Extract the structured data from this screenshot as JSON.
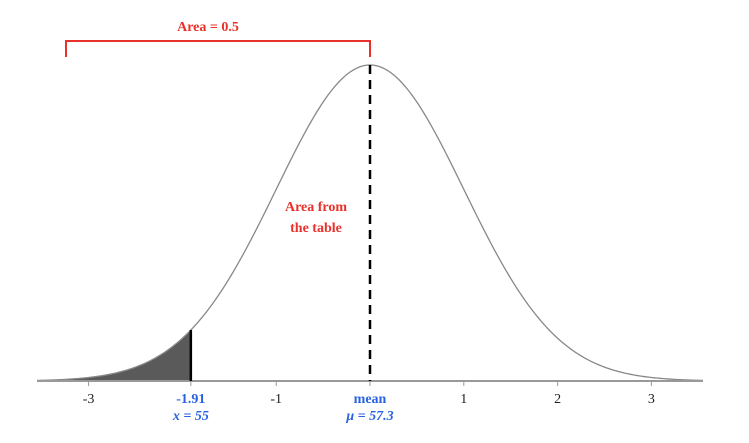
{
  "chart_data": {
    "type": "normal-curve",
    "xlim": [
      -3.55,
      3.55
    ],
    "xticks": [
      -3,
      -1.91,
      -1,
      {
        "value": 0,
        "label": "mean"
      },
      1,
      2,
      3
    ],
    "shade_to": -1.91,
    "tick_notes": [
      {
        "tick": 1,
        "text": "x = 55"
      },
      {
        "tick": 3,
        "text": "μ = 57.3"
      }
    ],
    "bracket_label": "Area = 0.5",
    "table_label": [
      "Area from",
      "the table"
    ]
  }
}
